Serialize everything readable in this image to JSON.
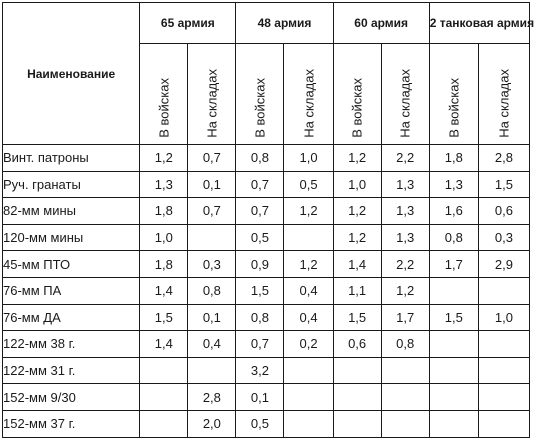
{
  "table": {
    "name_header": "Наименование",
    "armies": [
      {
        "name": "65 армия"
      },
      {
        "name": "48 армия"
      },
      {
        "name": "60 армия"
      },
      {
        "name": "2 танковая армия"
      }
    ],
    "sub_headers": {
      "in_troops": "В войсках",
      "in_depots": "На складах"
    },
    "rows": [
      {
        "name": "Винт. патроны",
        "values": [
          "1,2",
          "0,7",
          "0,8",
          "1,0",
          "1,2",
          "2,2",
          "1,8",
          "2,8"
        ]
      },
      {
        "name": "Руч. гранаты",
        "values": [
          "1,3",
          "0,1",
          "0,7",
          "0,5",
          "1,0",
          "1,3",
          "1,3",
          "1,5"
        ]
      },
      {
        "name": "82-мм мины",
        "values": [
          "1,8",
          "0,7",
          "0,7",
          "1,2",
          "1,2",
          "1,3",
          "1,6",
          "0,6"
        ]
      },
      {
        "name": "120-мм мины",
        "values": [
          "1,0",
          "",
          "0,5",
          "",
          "1,2",
          "1,3",
          "0,8",
          "0,3"
        ]
      },
      {
        "name": "45-мм ПТО",
        "values": [
          "1,8",
          "0,3",
          "0,9",
          "1,2",
          "1,4",
          "2,2",
          "1,7",
          "2,9"
        ]
      },
      {
        "name": "76-мм ПА",
        "values": [
          "1,4",
          "0,8",
          "1,5",
          "0,4",
          "1,1",
          "1,2",
          "",
          ""
        ]
      },
      {
        "name": "76-мм ДА",
        "values": [
          "1,5",
          "0,1",
          "0,8",
          "0,4",
          "1,5",
          "1,7",
          "1,5",
          "1,0"
        ]
      },
      {
        "name": "122-мм 38 г.",
        "values": [
          "1,4",
          "0,4",
          "0,7",
          "0,2",
          "0,6",
          "0,8",
          "",
          ""
        ]
      },
      {
        "name": "122-мм 31 г.",
        "values": [
          "",
          "",
          "3,2",
          "",
          "",
          "",
          "",
          ""
        ]
      },
      {
        "name": "152-мм 9/30",
        "values": [
          "",
          "2,8",
          "0,1",
          "",
          "",
          "",
          "",
          ""
        ]
      },
      {
        "name": "152-мм 37 г.",
        "values": [
          "",
          "2,0",
          "0,5",
          "",
          "",
          "",
          "",
          ""
        ]
      }
    ]
  }
}
